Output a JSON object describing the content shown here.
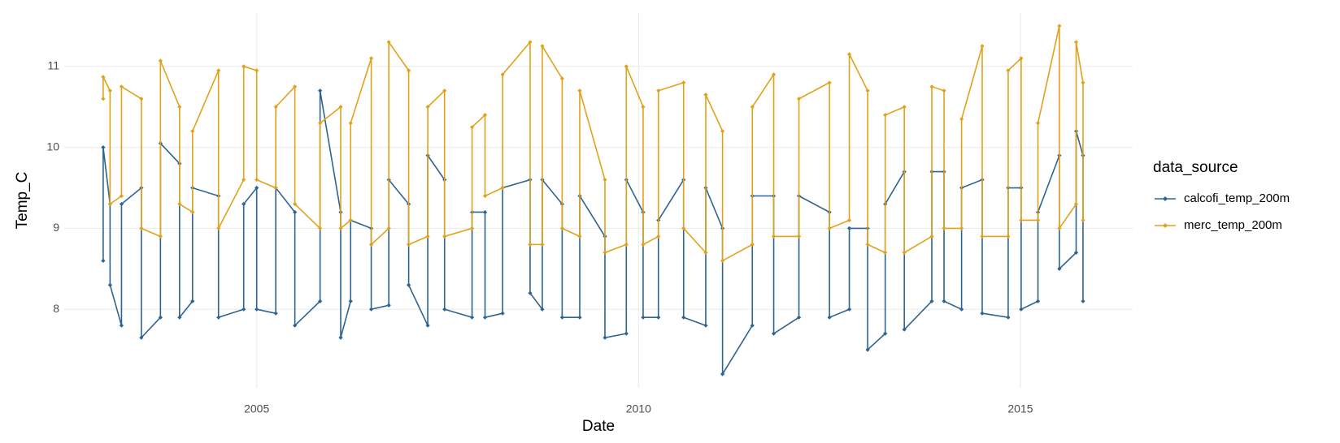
{
  "chart_data": {
    "type": "line",
    "x_label": "Date",
    "y_label": "Temp_C",
    "legend_title": "data_source",
    "x": [
      2002.99,
      2002.99,
      2003.08,
      2003.08,
      2003.23,
      2003.23,
      2003.49,
      2003.49,
      2003.74,
      2003.74,
      2003.99,
      2003.99,
      2004.16,
      2004.16,
      2004.5,
      2004.5,
      2004.83,
      2004.83,
      2005,
      2005,
      2005.25,
      2005.25,
      2005.5,
      2005.5,
      2005.83,
      2005.83,
      2006.1,
      2006.1,
      2006.23,
      2006.23,
      2006.5,
      2006.5,
      2006.73,
      2006.73,
      2006.99,
      2006.99,
      2007.24,
      2007.24,
      2007.46,
      2007.46,
      2007.82,
      2007.82,
      2007.99,
      2007.99,
      2008.22,
      2008.22,
      2008.58,
      2008.58,
      2008.74,
      2008.74,
      2009,
      2009,
      2009.23,
      2009.23,
      2009.56,
      2009.56,
      2009.84,
      2009.84,
      2010.06,
      2010.06,
      2010.26,
      2010.26,
      2010.59,
      2010.59,
      2010.88,
      2010.88,
      2011.1,
      2011.1,
      2011.49,
      2011.49,
      2011.77,
      2011.77,
      2012.1,
      2012.1,
      2012.5,
      2012.5,
      2012.76,
      2012.76,
      2013,
      2013,
      2013.23,
      2013.23,
      2013.48,
      2013.48,
      2013.84,
      2013.84,
      2014,
      2014,
      2014.23,
      2014.23,
      2014.5,
      2014.5,
      2014.84,
      2014.84,
      2015.01,
      2015.01,
      2015.23,
      2015.23,
      2015.51,
      2015.51,
      2015.73,
      2015.73,
      2015.82,
      2015.82
    ],
    "series": [
      {
        "name": "calcofi_temp_200m",
        "color": "#2E6491",
        "values": [
          8.6,
          10.0,
          9.3,
          8.3,
          7.8,
          9.3,
          9.5,
          7.65,
          7.9,
          10.05,
          9.8,
          7.9,
          8.1,
          9.5,
          9.4,
          7.9,
          8.0,
          9.3,
          9.5,
          8.0,
          7.95,
          9.5,
          9.2,
          7.8,
          8.1,
          10.7,
          9.2,
          7.65,
          8.1,
          9.1,
          9.0,
          8.0,
          8.05,
          9.6,
          9.3,
          8.3,
          7.8,
          9.9,
          9.6,
          8.0,
          7.9,
          9.2,
          9.2,
          7.9,
          7.95,
          9.5,
          9.6,
          8.2,
          8.0,
          9.6,
          9.3,
          7.9,
          7.9,
          9.4,
          8.9,
          7.65,
          7.7,
          9.6,
          9.2,
          7.9,
          7.9,
          9.1,
          9.6,
          7.9,
          7.8,
          9.5,
          9.0,
          7.2,
          7.8,
          9.4,
          9.4,
          7.7,
          7.9,
          9.4,
          9.2,
          7.9,
          8.0,
          9.0,
          9.0,
          7.5,
          7.7,
          9.3,
          9.7,
          7.75,
          8.1,
          9.7,
          9.7,
          8.1,
          8.0,
          9.5,
          9.6,
          7.95,
          7.9,
          9.5,
          9.5,
          8.0,
          8.1,
          9.2,
          9.9,
          8.5,
          8.7,
          10.2,
          9.9,
          8.1
        ]
      },
      {
        "name": "merc_temp_200m",
        "color": "#E1A21B",
        "values": [
          10.6,
          10.87,
          10.7,
          9.3,
          9.4,
          10.75,
          10.6,
          9.0,
          8.9,
          11.07,
          10.5,
          9.3,
          9.2,
          10.2,
          10.95,
          9.0,
          9.6,
          11.0,
          10.95,
          9.6,
          9.5,
          10.5,
          10.75,
          9.3,
          9.0,
          10.3,
          10.5,
          9.0,
          9.1,
          10.3,
          11.1,
          8.8,
          9.0,
          11.3,
          10.95,
          8.8,
          8.9,
          10.5,
          10.7,
          8.9,
          9.0,
          10.25,
          10.4,
          9.4,
          9.5,
          10.9,
          11.3,
          8.8,
          8.8,
          11.25,
          10.85,
          9.0,
          8.9,
          10.7,
          9.6,
          8.7,
          8.8,
          11.0,
          10.5,
          8.8,
          8.9,
          10.7,
          10.8,
          9.0,
          8.7,
          10.65,
          10.2,
          8.6,
          8.8,
          10.5,
          10.9,
          8.9,
          8.9,
          10.6,
          10.8,
          9.0,
          9.1,
          11.15,
          10.7,
          8.8,
          8.7,
          10.4,
          10.5,
          8.7,
          8.9,
          10.75,
          10.7,
          9.0,
          9.0,
          10.35,
          11.25,
          8.9,
          8.9,
          10.95,
          11.1,
          9.1,
          9.1,
          10.3,
          11.5,
          9.0,
          9.3,
          11.3,
          10.8,
          9.1
        ]
      }
    ],
    "xlim": [
      2002.48,
      2016.47
    ],
    "xticks": [
      2005,
      2010,
      2015
    ],
    "ylim": [
      7.03,
      11.66
    ],
    "yticks": [
      8,
      9,
      10,
      11
    ],
    "grid": true,
    "legend": "right"
  }
}
